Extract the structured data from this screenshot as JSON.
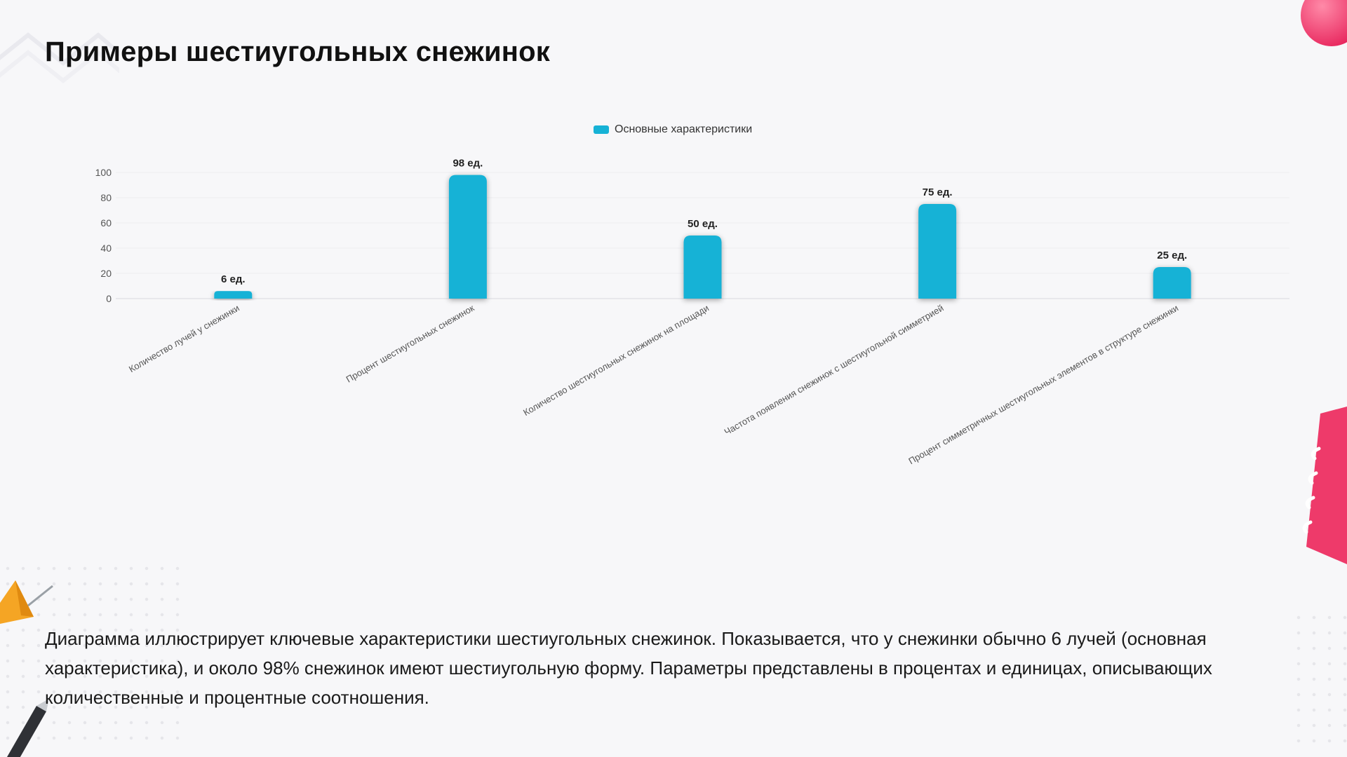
{
  "page": {
    "title": "Примеры шестиугольных снежинок",
    "description": "Диаграмма иллюстрирует ключевые характеристики шестиугольных снежинок. Показывается, что у снежинки обычно 6 лучей (основная характеристика), и около 98% снежинок имеют шестиугольную форму. Параметры представлены в процентах и единицах, описывающих количественные и процентные соотношения."
  },
  "colors": {
    "bar": "#16b2d6",
    "accent_pink": "#f03a6e",
    "accent_orange": "#f5a524"
  },
  "chart_data": {
    "type": "bar",
    "legend_position": "top-center",
    "grid": true,
    "ylim": [
      0,
      100
    ],
    "yticks": [
      0,
      20,
      40,
      60,
      80,
      100
    ],
    "categories": [
      "Количество лучей у снежинки",
      "Процент шестиугольных снежинок",
      "Количество шестиугольных снежинок на площади",
      "Частота появления снежинок с шестиугольной симметрией",
      "Процент симметричных шестиугольных элементов в структуре снежинки"
    ],
    "series": [
      {
        "name": "Основные характеристики",
        "values": [
          6,
          98,
          50,
          75,
          25
        ],
        "data_labels": [
          "6 ед.",
          "98 ед.",
          "50 ед.",
          "75 ед.",
          "25 ед."
        ]
      }
    ]
  }
}
